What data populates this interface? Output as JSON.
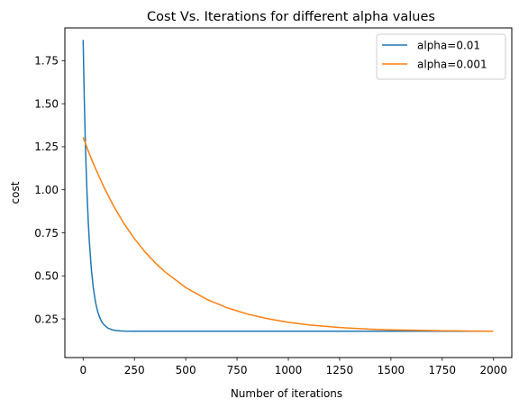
{
  "chart_data": {
    "type": "line",
    "title": "Cost Vs. Iterations for different alpha values",
    "xlabel": "Number of iterations",
    "ylabel": "cost",
    "xlim": [
      -89,
      2089
    ],
    "ylim": [
      0.0252,
      1.9402
    ],
    "xticks": [
      0,
      250,
      500,
      750,
      1000,
      1250,
      1500,
      1750,
      2000
    ],
    "xtick_labels": [
      "0",
      "250",
      "500",
      "750",
      "1000",
      "1250",
      "1500",
      "1750",
      "2000"
    ],
    "yticks": [
      0.25,
      0.5,
      0.75,
      1.0,
      1.25,
      1.5,
      1.75
    ],
    "ytick_labels": [
      "0.25",
      "0.50",
      "0.75",
      "1.00",
      "1.25",
      "1.50",
      "1.75"
    ],
    "grid": false,
    "legend": "top-right",
    "series": [
      {
        "name": "alpha=0.01",
        "color": "#1f77b4",
        "x": [
          0,
          5,
          10,
          15,
          20,
          25,
          30,
          40,
          50,
          60,
          70,
          80,
          90,
          100,
          120,
          140,
          160,
          180,
          200,
          250,
          300,
          400,
          600,
          800,
          1000,
          1250,
          1500,
          1750,
          1999
        ],
        "y": [
          1.87,
          1.56,
          1.31,
          1.11,
          0.95,
          0.813,
          0.704,
          0.539,
          0.426,
          0.349,
          0.296,
          0.26,
          0.235,
          0.218,
          0.197,
          0.187,
          0.182,
          0.18,
          0.179,
          0.178,
          0.178,
          0.178,
          0.178,
          0.178,
          0.178,
          0.178,
          0.178,
          0.178,
          0.178
        ]
      },
      {
        "name": "alpha=0.001",
        "color": "#ff7f0e",
        "x": [
          0,
          25,
          50,
          100,
          150,
          200,
          250,
          300,
          350,
          400,
          500,
          600,
          700,
          800,
          900,
          1000,
          1100,
          1250,
          1400,
          1500,
          1600,
          1750,
          1900,
          1999
        ],
        "y": [
          1.305,
          1.225,
          1.151,
          1.018,
          0.902,
          0.802,
          0.716,
          0.641,
          0.577,
          0.522,
          0.432,
          0.365,
          0.315,
          0.278,
          0.251,
          0.23,
          0.215,
          0.2,
          0.19,
          0.186,
          0.184,
          0.181,
          0.179,
          0.178
        ]
      }
    ]
  }
}
